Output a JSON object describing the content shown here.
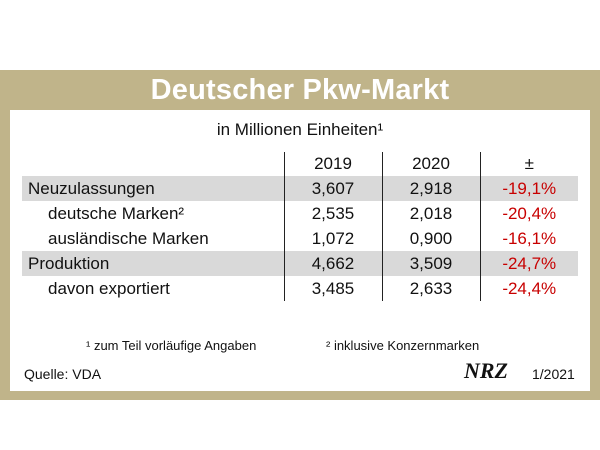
{
  "title": "Deutscher Pkw-Markt",
  "subtitle": "in Millionen Einheiten¹",
  "table": {
    "headers": [
      "",
      "2019",
      "2020",
      "±"
    ],
    "rows": [
      {
        "label": "Neuzulassungen",
        "v2019": "3,607",
        "v2020": "2,918",
        "delta": "-19,1%",
        "shaded": true,
        "indent": false
      },
      {
        "label": "deutsche Marken²",
        "v2019": "2,535",
        "v2020": "2,018",
        "delta": "-20,4%",
        "shaded": false,
        "indent": true
      },
      {
        "label": "ausländische Marken",
        "v2019": "1,072",
        "v2020": "0,900",
        "delta": "-16,1%",
        "shaded": false,
        "indent": true
      },
      {
        "label": "Produktion",
        "v2019": "4,662",
        "v2020": "3,509",
        "delta": "-24,7%",
        "shaded": true,
        "indent": false
      },
      {
        "label": "davon exportiert",
        "v2019": "3,485",
        "v2020": "2,633",
        "delta": "-24,4%",
        "shaded": false,
        "indent": true
      }
    ]
  },
  "footnotes": {
    "note1": "¹ zum Teil vorläufige Angaben",
    "note2": "² inklusive Konzernmarken"
  },
  "footer": {
    "source": "Quelle: VDA",
    "brand": "NRZ",
    "issue": "1/2021"
  },
  "colors": {
    "frame": "#c0b48a",
    "negative": "#c80000",
    "row_shade": "#d9d9d9"
  }
}
